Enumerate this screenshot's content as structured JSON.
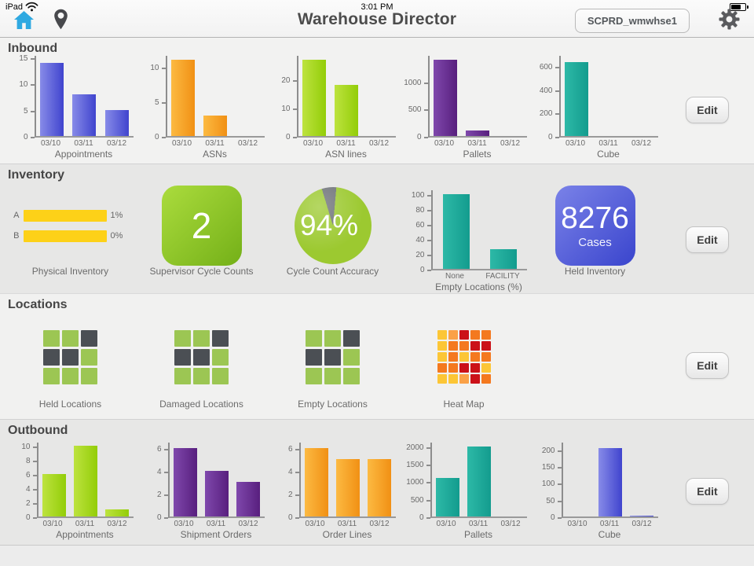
{
  "status_bar": {
    "device": "iPad",
    "time": "3:01 PM",
    "battery_percent": 70
  },
  "nav_bar": {
    "title": "Warehouse Director",
    "warehouse_button": "SCPRD_wmwhse1"
  },
  "ui": {
    "edit_label": "Edit"
  },
  "colors": {
    "accent_blue": "#2fa9e1",
    "bars": {
      "blue": [
        "#878be8",
        "#4044ce"
      ],
      "orange": [
        "#fcba42",
        "#f19014"
      ],
      "green": [
        "#bde33f",
        "#93cd08"
      ],
      "purple": [
        "#7f48ac",
        "#581f7e"
      ],
      "teal": [
        "#2db9a7",
        "#139c8e"
      ]
    },
    "bar_yellow": "#fdd118",
    "tile_green": [
      "#abdc3d",
      "#74b018"
    ],
    "tile_blue": [
      "#7a82e8",
      "#3a45cd"
    ],
    "pie_green": "#9cc930",
    "pie_gray": "#6d7177",
    "grid_green": "#9cc653",
    "grid_dark": "#4b4f54",
    "heat": {
      "y": "#fcc636",
      "lo": "#faa147",
      "o": "#f4791f",
      "r": "#cb1118"
    }
  },
  "sections": {
    "inbound": {
      "title": "Inbound",
      "charts": [
        {
          "type": "bar",
          "label": "Appointments",
          "color": "blue",
          "categories": [
            "03/10",
            "03/11",
            "03/12"
          ],
          "values": [
            14,
            8,
            5
          ],
          "yticks": [
            0,
            5,
            10,
            15
          ],
          "scale_max": 15.6
        },
        {
          "type": "bar",
          "label": "ASNs",
          "color": "orange",
          "categories": [
            "03/10",
            "03/11",
            "03/12"
          ],
          "values": [
            11,
            3,
            0
          ],
          "yticks": [
            0,
            5,
            10
          ],
          "scale_max": 11.8
        },
        {
          "type": "bar",
          "label": "ASN lines",
          "color": "green",
          "categories": [
            "03/10",
            "03/11",
            "03/12"
          ],
          "values": [
            27,
            18,
            0
          ],
          "yticks": [
            0,
            10,
            20
          ],
          "scale_max": 29
        },
        {
          "type": "bar",
          "label": "Pallets",
          "color": "purple",
          "categories": [
            "03/10",
            "03/11",
            "03/12"
          ],
          "values": [
            1400,
            100,
            0
          ],
          "yticks": [
            0,
            500,
            1000
          ],
          "scale_max": 1500
        },
        {
          "type": "bar",
          "label": "Cube",
          "color": "teal",
          "categories": [
            "03/10",
            "03/11",
            "03/12"
          ],
          "values": [
            630,
            0,
            0
          ],
          "yticks": [
            0,
            200,
            400,
            600
          ],
          "scale_max": 700
        }
      ]
    },
    "inventory": {
      "title": "Inventory",
      "physical_inventory": {
        "label": "Physical Inventory",
        "rows": [
          {
            "name": "A",
            "value": "1%"
          },
          {
            "name": "B",
            "value": "0%"
          }
        ]
      },
      "supervisor_cycle_counts": {
        "label": "Supervisor Cycle Counts",
        "value": "2"
      },
      "cycle_count_accuracy": {
        "label": "Cycle Count Accuracy",
        "value": "94%",
        "percent": 94,
        "gray_start_deg": -17,
        "gray_sweep_deg": 22
      },
      "empty_locations": {
        "type": "bar",
        "label": "Empty Locations (%)",
        "color": "teal",
        "categories": [
          "None",
          "FACILITY"
        ],
        "values": [
          100,
          26
        ],
        "yticks": [
          0,
          20,
          40,
          60,
          80,
          100
        ],
        "scale_max": 107
      },
      "held_inventory": {
        "label": "Held Inventory",
        "value": "8276",
        "unit": "Cases"
      }
    },
    "locations": {
      "title": "Locations",
      "grids": [
        {
          "label": "Held Locations",
          "cells": [
            "g",
            "g",
            "d",
            "d",
            "d",
            "g",
            "g",
            "g",
            "g"
          ]
        },
        {
          "label": "Damaged Locations",
          "cells": [
            "g",
            "g",
            "d",
            "d",
            "d",
            "g",
            "g",
            "g",
            "g"
          ]
        },
        {
          "label": "Empty Locations",
          "cells": [
            "g",
            "g",
            "d",
            "d",
            "d",
            "g",
            "g",
            "g",
            "g"
          ]
        }
      ],
      "heat_map": {
        "label": "Heat Map",
        "cells": [
          "y",
          "lo",
          "r",
          "o",
          "o",
          "y",
          "o",
          "o",
          "r",
          "r",
          "y",
          "o",
          "y",
          "o",
          "o",
          "o",
          "o",
          "r",
          "r",
          "y",
          "y",
          "y",
          "lo",
          "r",
          "o"
        ]
      }
    },
    "outbound": {
      "title": "Outbound",
      "charts": [
        {
          "type": "bar",
          "label": "Appointments",
          "color": "green",
          "categories": [
            "03/10",
            "03/11",
            "03/12"
          ],
          "values": [
            6,
            10,
            1
          ],
          "yticks": [
            0,
            2,
            4,
            6,
            8,
            10
          ],
          "scale_max": 10.7
        },
        {
          "type": "bar",
          "label": "Shipment Orders",
          "color": "purple",
          "categories": [
            "03/10",
            "03/11",
            "03/12"
          ],
          "values": [
            6,
            4,
            3
          ],
          "yticks": [
            0,
            2,
            4,
            6
          ],
          "scale_max": 6.6
        },
        {
          "type": "bar",
          "label": "Order Lines",
          "color": "orange",
          "categories": [
            "03/10",
            "03/11",
            "03/12"
          ],
          "values": [
            6,
            5,
            5
          ],
          "yticks": [
            0,
            2,
            4,
            6
          ],
          "scale_max": 6.6
        },
        {
          "type": "bar",
          "label": "Pallets",
          "color": "teal",
          "categories": [
            "03/10",
            "03/11",
            "03/12"
          ],
          "values": [
            1100,
            2000,
            0
          ],
          "yticks": [
            0,
            500,
            1000,
            1500,
            2000
          ],
          "scale_max": 2150
        },
        {
          "type": "bar",
          "label": "Cube",
          "color": "blue",
          "categories": [
            "03/10",
            "03/11",
            "03/12"
          ],
          "values": [
            0,
            205,
            3
          ],
          "yticks": [
            0,
            50,
            100,
            150,
            200
          ],
          "scale_max": 225
        }
      ]
    }
  }
}
